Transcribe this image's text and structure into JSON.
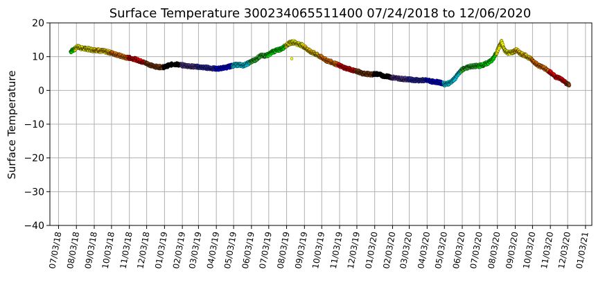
{
  "chart_data": {
    "type": "scatter",
    "title": "Surface Temperature 300234065511400  07/24/2018 to 12/06/2020",
    "ylabel": "Surface Temperature",
    "xlabel": "",
    "ylim": [
      -40,
      20
    ],
    "yticks": [
      20,
      10,
      0,
      -10,
      -20,
      -30,
      -40
    ],
    "xlim": [
      "2018-06-18",
      "2021-01-14"
    ],
    "xticks": [
      "07/03/18",
      "08/03/18",
      "09/03/18",
      "10/03/18",
      "11/03/18",
      "12/03/18",
      "01/03/19",
      "02/03/19",
      "03/03/19",
      "04/03/19",
      "05/03/19",
      "06/03/19",
      "07/03/19",
      "08/03/19",
      "09/03/19",
      "10/03/19",
      "11/03/19",
      "12/03/19",
      "01/03/20",
      "02/03/20",
      "03/03/20",
      "04/03/20",
      "05/03/20",
      "06/03/20",
      "07/03/20",
      "08/03/20",
      "09/03/20",
      "10/03/20",
      "11/03/20",
      "12/03/20",
      "01/03/21"
    ],
    "grid": true,
    "color_by_month": {
      "Jan": "#000000",
      "Feb": "#6040a0",
      "Mar": "#3030c0",
      "Apr": "#0000ff",
      "May": "#00e5ff",
      "Jun": "#33cc33",
      "Jul": "#00ff00",
      "Aug": "#ffff00",
      "Sep": "#ffd700",
      "Oct": "#ff8000",
      "Nov": "#ff0000",
      "Dec": "#8b4513"
    },
    "series": [
      {
        "x": [
          "2018-07-24",
          "2018-07-28",
          "2018-08-01",
          "2018-08-05",
          "2018-08-10",
          "2018-08-15",
          "2018-08-20",
          "2018-08-25",
          "2018-08-31",
          "2018-09-05",
          "2018-09-12",
          "2018-09-20",
          "2018-09-28",
          "2018-10-05",
          "2018-10-12",
          "2018-10-20",
          "2018-10-28",
          "2018-11-05",
          "2018-11-12",
          "2018-11-20",
          "2018-11-28",
          "2018-12-05",
          "2018-12-12",
          "2018-12-20",
          "2018-12-28",
          "2019-01-03",
          "2019-01-10",
          "2019-01-18",
          "2019-01-25",
          "2019-02-01",
          "2019-02-10",
          "2019-02-20",
          "2019-03-01",
          "2019-03-10",
          "2019-03-20",
          "2019-03-28",
          "2019-04-05",
          "2019-04-12",
          "2019-04-20",
          "2019-04-28",
          "2019-05-05",
          "2019-05-12",
          "2019-05-20",
          "2019-05-28",
          "2019-06-03",
          "2019-06-10",
          "2019-06-18",
          "2019-06-26",
          "2019-07-03",
          "2019-07-10",
          "2019-07-18",
          "2019-07-26",
          "2019-08-01",
          "2019-08-08",
          "2019-08-15",
          "2019-08-22",
          "2019-08-29",
          "2019-09-05",
          "2019-09-12",
          "2019-09-20",
          "2019-09-28",
          "2019-10-05",
          "2019-10-12",
          "2019-10-20",
          "2019-10-28",
          "2019-11-05",
          "2019-11-12",
          "2019-11-20",
          "2019-11-28",
          "2019-12-05",
          "2019-12-12",
          "2019-12-20",
          "2019-12-28",
          "2020-01-03",
          "2020-01-10",
          "2020-01-18",
          "2020-01-26",
          "2020-02-03",
          "2020-02-12",
          "2020-02-20",
          "2020-03-01",
          "2020-03-10",
          "2020-03-20",
          "2020-03-28",
          "2020-04-05",
          "2020-04-12",
          "2020-04-20",
          "2020-04-28",
          "2020-05-03",
          "2020-05-08",
          "2020-05-14",
          "2020-05-20",
          "2020-05-27",
          "2020-06-03",
          "2020-06-10",
          "2020-06-18",
          "2020-06-26",
          "2020-07-03",
          "2020-07-10",
          "2020-07-18",
          "2020-07-26",
          "2020-08-01",
          "2020-08-05",
          "2020-08-10",
          "2020-08-15",
          "2020-08-22",
          "2020-08-29",
          "2020-09-05",
          "2020-09-12",
          "2020-09-20",
          "2020-09-28",
          "2020-10-05",
          "2020-10-12",
          "2020-10-20",
          "2020-10-28",
          "2020-11-05",
          "2020-11-12",
          "2020-11-20",
          "2020-11-28",
          "2020-12-03",
          "2020-12-06"
        ],
        "y": [
          11.5,
          12.0,
          12.3,
          13.0,
          12.6,
          12.4,
          12.3,
          12.2,
          12.0,
          12.0,
          11.8,
          11.6,
          11.3,
          11.0,
          10.6,
          10.1,
          9.7,
          9.6,
          9.3,
          8.8,
          8.3,
          7.9,
          7.3,
          7.0,
          6.9,
          6.9,
          7.4,
          7.8,
          7.7,
          7.5,
          7.3,
          7.1,
          7.0,
          6.8,
          6.7,
          6.5,
          6.4,
          6.6,
          6.8,
          7.2,
          7.5,
          7.6,
          7.4,
          8.0,
          8.6,
          9.1,
          10.2,
          10.3,
          10.6,
          11.5,
          11.9,
          12.4,
          13.2,
          14.0,
          14.3,
          13.8,
          13.4,
          12.6,
          11.6,
          11.0,
          10.2,
          9.6,
          8.8,
          8.4,
          7.8,
          7.2,
          6.7,
          6.3,
          5.9,
          5.6,
          5.0,
          4.9,
          4.7,
          4.9,
          4.8,
          4.3,
          4.1,
          3.8,
          3.6,
          3.4,
          3.3,
          3.1,
          3.0,
          3.0,
          2.9,
          2.6,
          2.5,
          2.2,
          1.8,
          2.0,
          2.4,
          3.3,
          4.8,
          6.2,
          6.7,
          7.1,
          7.2,
          7.3,
          7.6,
          8.2,
          9.2,
          11.0,
          12.5,
          14.3,
          12.0,
          11.1,
          11.3,
          11.9,
          11.0,
          10.3,
          9.6,
          8.6,
          7.5,
          6.9,
          6.1,
          5.1,
          4.0,
          3.6,
          2.5,
          1.8,
          1.6
        ]
      }
    ],
    "outliers": [
      {
        "x": "2019-08-12",
        "y": 9.4
      }
    ]
  }
}
